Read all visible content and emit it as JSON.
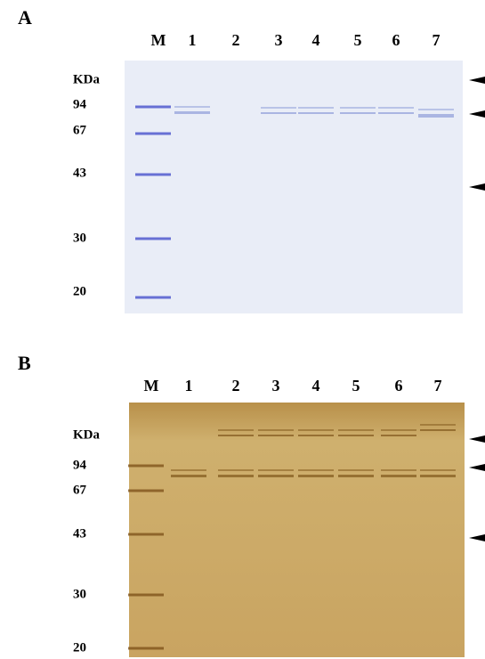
{
  "panels": [
    {
      "label": "A",
      "lanes": [
        "M",
        "1",
        "2",
        "3",
        "4",
        "5",
        "6",
        "7"
      ],
      "unit": "KDa",
      "markers": [
        94,
        67,
        43,
        30,
        20
      ]
    },
    {
      "label": "B",
      "lanes": [
        "M",
        "1",
        "2",
        "3",
        "4",
        "5",
        "6",
        "7"
      ],
      "unit": "KDa",
      "markers": [
        94,
        67,
        43,
        30,
        20
      ]
    }
  ]
}
